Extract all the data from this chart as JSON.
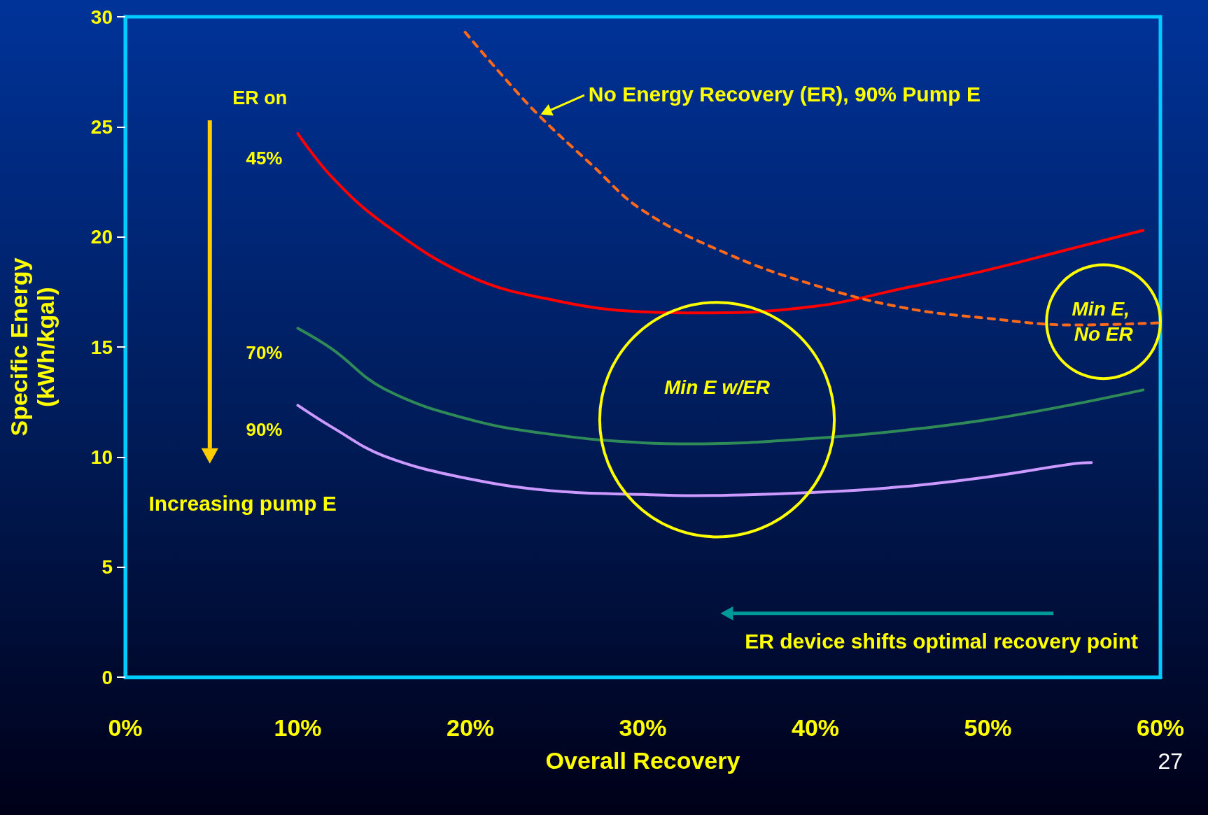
{
  "chart_data": {
    "type": "line",
    "xlabel": "Overall Recovery",
    "ylabel": "Specific Energy\n(kWh/kgal)",
    "xlim": [
      0,
      60
    ],
    "xticks": [
      {
        "value": 0,
        "label": "0%"
      },
      {
        "value": 10,
        "label": "10%"
      },
      {
        "value": 20,
        "label": "20%"
      },
      {
        "value": 30,
        "label": "30%"
      },
      {
        "value": 40,
        "label": "40%"
      },
      {
        "value": 50,
        "label": "50%"
      },
      {
        "value": 60,
        "label": "60%"
      }
    ],
    "ylim": [
      0,
      30
    ],
    "yticks": [
      0,
      5,
      10,
      15,
      20,
      25,
      30
    ],
    "grid": false,
    "legend": false,
    "marker": "none",
    "series": [
      {
        "name": "45%",
        "color": "#ff0000",
        "x": [
          10,
          12,
          15,
          20,
          25,
          30,
          33.5,
          40,
          45,
          50,
          55,
          59
        ],
        "values": [
          24.7,
          22.7,
          20.6,
          18.2,
          17.1,
          16.6,
          16.55,
          16.85,
          17.65,
          18.5,
          19.5,
          20.3
        ]
      },
      {
        "name": "70%",
        "color": "#2e8b57",
        "x": [
          10,
          12,
          15,
          20,
          25,
          30,
          33,
          40,
          45,
          50,
          55,
          59
        ],
        "values": [
          15.85,
          14.9,
          13.1,
          11.7,
          11.0,
          10.65,
          10.6,
          10.85,
          11.2,
          11.7,
          12.4,
          13.05
        ]
      },
      {
        "name": "90%",
        "color": "#cc99ff",
        "x": [
          10,
          12,
          15,
          20,
          25,
          30,
          33,
          40,
          45,
          50,
          55,
          56
        ],
        "values": [
          12.35,
          11.35,
          10.05,
          9.0,
          8.45,
          8.3,
          8.25,
          8.4,
          8.65,
          9.1,
          9.7,
          9.75
        ]
      },
      {
        "color": "#ff6a1a",
        "line_style": "dashed",
        "x": [
          19.7,
          22,
          24,
          27,
          30,
          35,
          40,
          45,
          50,
          55,
          60
        ],
        "values": [
          29.3,
          27.2,
          25.5,
          23.3,
          21.2,
          19.2,
          17.8,
          16.8,
          16.3,
          16.0,
          16.1
        ]
      }
    ],
    "annotations": [
      {
        "text": "No Energy Recovery (ER), 90% Pump E",
        "x": 24,
        "y": 25.5
      },
      "Min E w/ER",
      "Min E, No ER",
      "ER on",
      "Increasing pump E",
      "ER device shifts optimal recovery point",
      "27"
    ]
  }
}
